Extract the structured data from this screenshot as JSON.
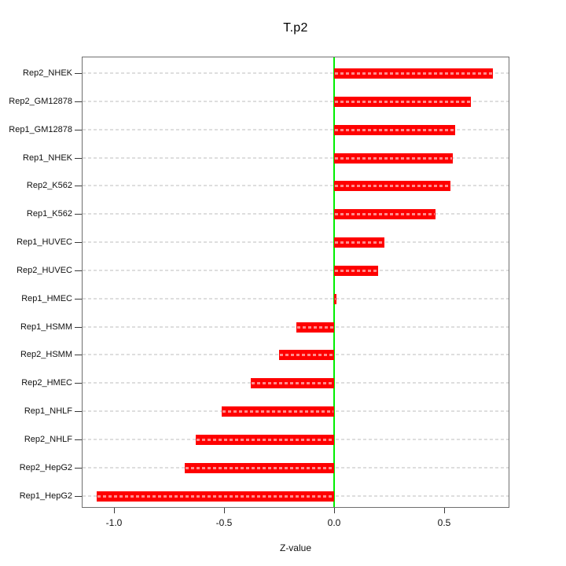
{
  "chart_data": {
    "type": "bar",
    "orientation": "horizontal",
    "title": "T.p2",
    "xlabel": "Z-value",
    "ylabel": "",
    "categories": [
      "Rep2_NHEK",
      "Rep2_GM12878",
      "Rep1_GM12878",
      "Rep1_NHEK",
      "Rep2_K562",
      "Rep1_K562",
      "Rep1_HUVEC",
      "Rep2_HUVEC",
      "Rep1_HMEC",
      "Rep1_HSMM",
      "Rep2_HSMM",
      "Rep2_HMEC",
      "Rep1_NHLF",
      "Rep2_NHLF",
      "Rep2_HepG2",
      "Rep1_HepG2"
    ],
    "values": [
      0.72,
      0.62,
      0.55,
      0.54,
      0.53,
      0.46,
      0.23,
      0.2,
      0.01,
      -0.17,
      -0.25,
      -0.38,
      -0.51,
      -0.63,
      -0.68,
      -1.08
    ],
    "x_ticks": [
      {
        "value": -1.0,
        "label": "-1.0"
      },
      {
        "value": -0.5,
        "label": "-0.5"
      },
      {
        "value": 0.0,
        "label": "0.0"
      },
      {
        "value": 0.5,
        "label": "0.5"
      }
    ],
    "xlim": [
      -1.15,
      0.8
    ],
    "grid": "dashed-horizontal-per-category",
    "legend": "none",
    "colors": {
      "bar": "#fe0000",
      "zero_line": "#00ef00",
      "grid_line": "#dedede",
      "plot_border": "#6f6f6f",
      "text": "#111111"
    }
  }
}
